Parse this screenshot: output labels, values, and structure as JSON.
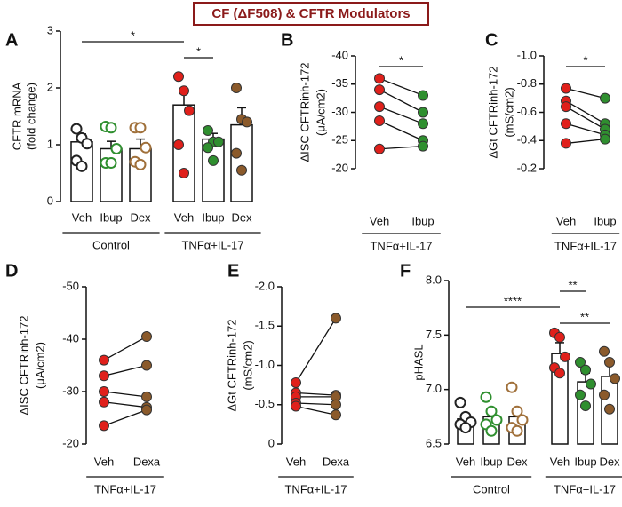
{
  "figure_title": "CF (ΔF508) & CFTR Modulators",
  "chart_data": [
    {
      "type": "bar",
      "label": "A",
      "ylabel": [
        "CFTR mRNA",
        "(fold change)"
      ],
      "categories": [
        "Veh",
        "Ibup",
        "Dex",
        "Veh",
        "Ibup",
        "Dex"
      ],
      "values": [
        1.05,
        0.93,
        0.93,
        1.7,
        1.1,
        1.35
      ],
      "errors": [
        0.14,
        0.13,
        0.17,
        0.2,
        0.1,
        0.3
      ],
      "points": [
        [
          1.28,
          1.12,
          1.02,
          0.72,
          0.62
        ],
        [
          1.32,
          1.3,
          0.93,
          0.68,
          0.68
        ],
        [
          1.3,
          1.3,
          0.95,
          0.7,
          0.65
        ],
        [
          2.2,
          1.95,
          1.6,
          1.0,
          0.5
        ],
        [
          1.25,
          1.05,
          1.05,
          0.95,
          0.72
        ],
        [
          2.0,
          1.45,
          1.4,
          0.85,
          0.55
        ]
      ],
      "colors": [
        "#222222",
        "#2f8f2f",
        "#a0703a",
        "#e0201b",
        "#2f8f2f",
        "#8b5a2b"
      ],
      "point_fill": [
        false,
        false,
        false,
        true,
        true,
        true
      ],
      "ylim": [
        0,
        3
      ],
      "yticks": [
        0,
        1,
        2,
        3
      ],
      "groups": [
        {
          "label": "Control",
          "from": 0,
          "to": 2
        },
        {
          "label": "TNFα+IL-17",
          "from": 3,
          "to": 5
        }
      ],
      "significance": [
        {
          "pair": [
            0,
            3
          ],
          "label": "*"
        },
        {
          "pair": [
            3,
            4
          ],
          "label": "*"
        }
      ]
    },
    {
      "type": "paired",
      "label": "B",
      "ylabel": [
        "ΔISC CFTRinh-172",
        "(μA/cm2)"
      ],
      "series": [
        {
          "name": "Veh",
          "color": "#e0201b",
          "values": [
            -36,
            -34,
            -31,
            -28.5,
            -23.5
          ]
        },
        {
          "name": "Ibup",
          "color": "#2f8f2f",
          "values": [
            -33,
            -30,
            -28,
            -25,
            -24
          ]
        }
      ],
      "ylim": [
        -20,
        -40
      ],
      "yticks": [
        -40,
        -35,
        -30,
        -25,
        -20
      ],
      "groups": [
        {
          "label": "TNFα+IL-17",
          "from": 0,
          "to": 1
        }
      ],
      "significance": [
        {
          "pair": [
            0,
            1
          ],
          "label": "*"
        }
      ]
    },
    {
      "type": "paired",
      "label": "C",
      "ylabel": [
        "ΔGt CFTRinh-172",
        "(mS/cm2)"
      ],
      "series": [
        {
          "name": "Veh",
          "color": "#e0201b",
          "values": [
            -0.77,
            -0.68,
            -0.64,
            -0.52,
            -0.38
          ]
        },
        {
          "name": "Ibup",
          "color": "#2f8f2f",
          "values": [
            -0.7,
            -0.52,
            -0.48,
            -0.44,
            -0.41
          ]
        }
      ],
      "ylim": [
        -0.2,
        -1
      ],
      "yticks": [
        {
          "value": -1,
          "label": "-1.0"
        },
        -0.8,
        -0.6,
        -0.4,
        -0.2
      ],
      "groups": [
        {
          "label": "TNFα+IL-17",
          "from": 0,
          "to": 1
        }
      ],
      "significance": [
        {
          "pair": [
            0,
            1
          ],
          "label": "*"
        }
      ]
    },
    {
      "type": "paired",
      "label": "D",
      "ylabel": [
        "ΔISC CFTRinh-172",
        "(μA/cm2)"
      ],
      "series": [
        {
          "name": "Veh",
          "color": "#e0201b",
          "values": [
            -36,
            -33,
            -30,
            -28,
            -23.5
          ]
        },
        {
          "name": "Dexa",
          "color": "#8b5a2b",
          "values": [
            -40.5,
            -35,
            -29,
            -27,
            -26.5
          ]
        }
      ],
      "ylim": [
        -20,
        -50
      ],
      "yticks": [
        -50,
        -40,
        -30,
        -20
      ],
      "groups": [
        {
          "label": "TNFα+IL-17",
          "from": 0,
          "to": 1
        }
      ],
      "significance": []
    },
    {
      "type": "paired",
      "label": "E",
      "ylabel": [
        "ΔGt CFTRinh-172",
        "(mS/cm2)"
      ],
      "series": [
        {
          "name": "Veh",
          "color": "#e0201b",
          "values": [
            -0.78,
            -0.65,
            -0.6,
            -0.52,
            -0.48
          ]
        },
        {
          "name": "Dexa",
          "color": "#8b5a2b",
          "values": [
            -1.6,
            -0.62,
            -0.6,
            -0.5,
            -0.37
          ]
        }
      ],
      "ylim": [
        0,
        -2
      ],
      "yticks": [
        {
          "value": -2,
          "label": "-2.0"
        },
        -1.5,
        {
          "value": -1,
          "label": "-1.0"
        },
        -0.5,
        0
      ],
      "groups": [
        {
          "label": "TNFα+IL-17",
          "from": 0,
          "to": 1
        }
      ],
      "significance": []
    },
    {
      "type": "bar",
      "label": "F",
      "ylabel": [
        "pHASL"
      ],
      "categories": [
        "Veh",
        "Ibup",
        "Dex",
        "Veh",
        "Ibup",
        "Dex"
      ],
      "values": [
        6.73,
        6.75,
        6.75,
        7.33,
        7.07,
        7.12
      ],
      "errors": [
        0.05,
        0.07,
        0.07,
        0.1,
        0.08,
        0.12
      ],
      "points": [
        [
          6.88,
          6.75,
          6.7,
          6.68,
          6.65
        ],
        [
          6.93,
          6.8,
          6.72,
          6.68,
          6.62
        ],
        [
          7.02,
          6.8,
          6.72,
          6.65,
          6.62
        ],
        [
          7.52,
          7.48,
          7.3,
          7.2,
          7.15
        ],
        [
          7.25,
          7.18,
          7.05,
          6.95,
          6.85
        ],
        [
          7.35,
          7.25,
          7.1,
          6.95,
          6.82
        ]
      ],
      "colors": [
        "#222222",
        "#2f8f2f",
        "#a0703a",
        "#e0201b",
        "#2f8f2f",
        "#8b5a2b"
      ],
      "point_fill": [
        false,
        false,
        false,
        true,
        true,
        true
      ],
      "ylim": [
        6.5,
        8
      ],
      "yticks": [
        6.5,
        {
          "value": 7,
          "label": "7.0"
        },
        7.5,
        {
          "value": 8,
          "label": "8.0"
        }
      ],
      "groups": [
        {
          "label": "Control",
          "from": 0,
          "to": 2
        },
        {
          "label": "TNFα+IL-17",
          "from": 3,
          "to": 5
        }
      ],
      "significance": [
        {
          "pair": [
            3,
            4
          ],
          "label": "**"
        },
        {
          "pair": [
            0,
            3
          ],
          "label": "****"
        },
        {
          "pair": [
            3,
            5
          ],
          "label": "**"
        }
      ]
    }
  ]
}
